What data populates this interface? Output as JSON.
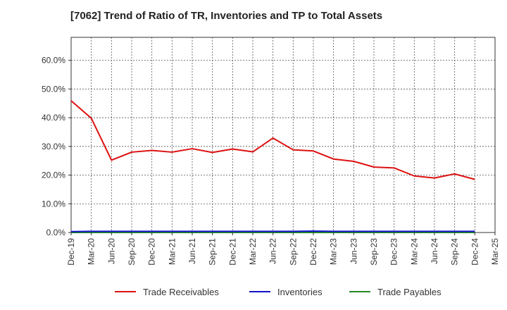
{
  "title": "[7062]  Trend of Ratio of TR, Inventories and TP to Total Assets",
  "chart_data": {
    "type": "line",
    "title": "[7062]  Trend of Ratio of TR, Inventories and TP to Total Assets",
    "xlabel": "",
    "ylabel": "",
    "ylim": [
      0,
      0.68
    ],
    "y_ticks": [
      0,
      0.1,
      0.2,
      0.3,
      0.4,
      0.5,
      0.6
    ],
    "y_tick_labels": [
      "0.0%",
      "10.0%",
      "20.0%",
      "30.0%",
      "40.0%",
      "50.0%",
      "60.0%"
    ],
    "x_tick_labels": [
      "Dec-19",
      "Mar-20",
      "Jun-20",
      "Sep-20",
      "Dec-20",
      "Mar-21",
      "Jun-21",
      "Sep-21",
      "Dec-21",
      "Mar-22",
      "Jun-22",
      "Sep-22",
      "Dec-22",
      "Mar-23",
      "Jun-23",
      "Sep-23",
      "Dec-23",
      "Mar-24",
      "Jun-24",
      "Sep-24",
      "Dec-24",
      "Mar-25"
    ],
    "categories": [
      "Dec-19",
      "Mar-20",
      "Jun-20",
      "Sep-20",
      "Dec-20",
      "Mar-21",
      "Jun-21",
      "Sep-21",
      "Dec-21",
      "Mar-22",
      "Jun-22",
      "Sep-22",
      "Dec-22",
      "Mar-23",
      "Jun-23",
      "Sep-23",
      "Dec-23",
      "Mar-24",
      "Jun-24",
      "Sep-24",
      "Dec-24"
    ],
    "grid": true,
    "legend_position": "bottom",
    "series": [
      {
        "name": "Trade Receivables",
        "color": "#dd1111",
        "values": [
          0.459,
          0.398,
          0.252,
          0.28,
          0.286,
          0.28,
          0.292,
          0.279,
          0.291,
          0.281,
          0.329,
          0.288,
          0.284,
          0.256,
          0.248,
          0.228,
          0.225,
          0.197,
          0.19,
          0.204,
          0.185
        ]
      },
      {
        "name": "Inventories",
        "color": "#1111cc",
        "values": [
          0.003,
          0.004,
          0.004,
          0.004,
          0.004,
          0.004,
          0.004,
          0.004,
          0.004,
          0.004,
          0.004,
          0.004,
          0.005,
          0.004,
          0.004,
          0.004,
          0.004,
          0.004,
          0.004,
          0.004,
          0.004
        ]
      },
      {
        "name": "Trade Payables",
        "color": "#228822",
        "values": [
          0.0,
          0.0,
          0.0,
          0.0,
          0.0,
          0.0,
          0.0,
          0.0,
          0.0,
          0.0,
          0.0,
          0.0,
          0.0,
          0.0,
          0.0,
          0.0,
          0.0,
          0.0,
          0.0,
          0.0,
          0.0
        ]
      }
    ]
  }
}
